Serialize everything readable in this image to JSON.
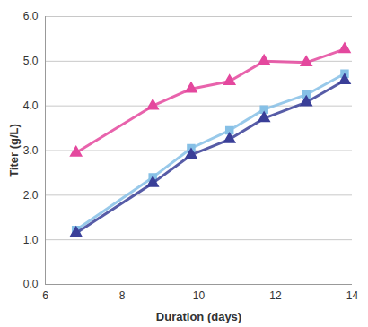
{
  "chart_data": {
    "type": "line",
    "x_label": "Duration (days)",
    "y_label": "Titer (g/L)",
    "x": [
      6.8,
      8.8,
      9.8,
      10.8,
      11.7,
      12.8,
      13.8
    ],
    "series": [
      {
        "color": "#e4489e",
        "marker": "triangle",
        "values": [
          2.95,
          4.0,
          4.38,
          4.55,
          5.0,
          4.97,
          5.27
        ]
      },
      {
        "color": "#86c0e6",
        "marker": "square",
        "values": [
          1.22,
          2.4,
          3.05,
          3.45,
          3.92,
          4.25,
          4.72
        ]
      },
      {
        "color": "#3a3f98",
        "marker": "triangle",
        "values": [
          1.15,
          2.27,
          2.9,
          3.25,
          3.72,
          4.08,
          4.57
        ]
      }
    ],
    "xlim": [
      6,
      14
    ],
    "xticks": [
      6,
      8,
      10,
      12,
      14
    ],
    "ylim": [
      0,
      6
    ],
    "yticks": [
      0,
      1,
      2,
      3,
      4,
      5,
      6
    ],
    "grid": true
  }
}
